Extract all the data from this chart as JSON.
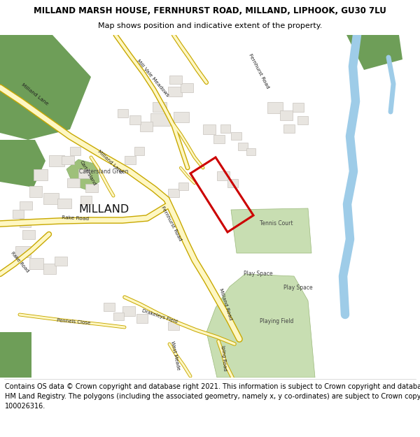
{
  "title_line1": "MILLAND MARSH HOUSE, FERNHURST ROAD, MILLAND, LIPHOOK, GU30 7LU",
  "title_line2": "Map shows position and indicative extent of the property.",
  "footer_lines": [
    "Contains OS data © Crown copyright and database right 2021. This information is subject to Crown copyright and database rights 2023 and is reproduced with the permission of",
    "HM Land Registry. The polygons (including the associated geometry, namely x, y co-ordinates) are subject to Crown copyright and database rights 2023 Ordnance Survey",
    "100026316."
  ],
  "title_fontsize": 8.5,
  "subtitle_fontsize": 8.0,
  "footer_fontsize": 7.0,
  "map_bg": "#f8f8f5",
  "road_fill": "#fef7c3",
  "road_edge": "#c8a800",
  "green_dark": "#6e9e58",
  "green_light": "#c8deb2",
  "green_mid": "#9ec07a",
  "building_fill": "#e8e5e0",
  "building_edge": "#c8c4be",
  "water_color": "#9ecce8",
  "red_color": "#cc0000",
  "label_color": "#222222",
  "milland_size": 11.5,
  "road_label_size": 5.5
}
